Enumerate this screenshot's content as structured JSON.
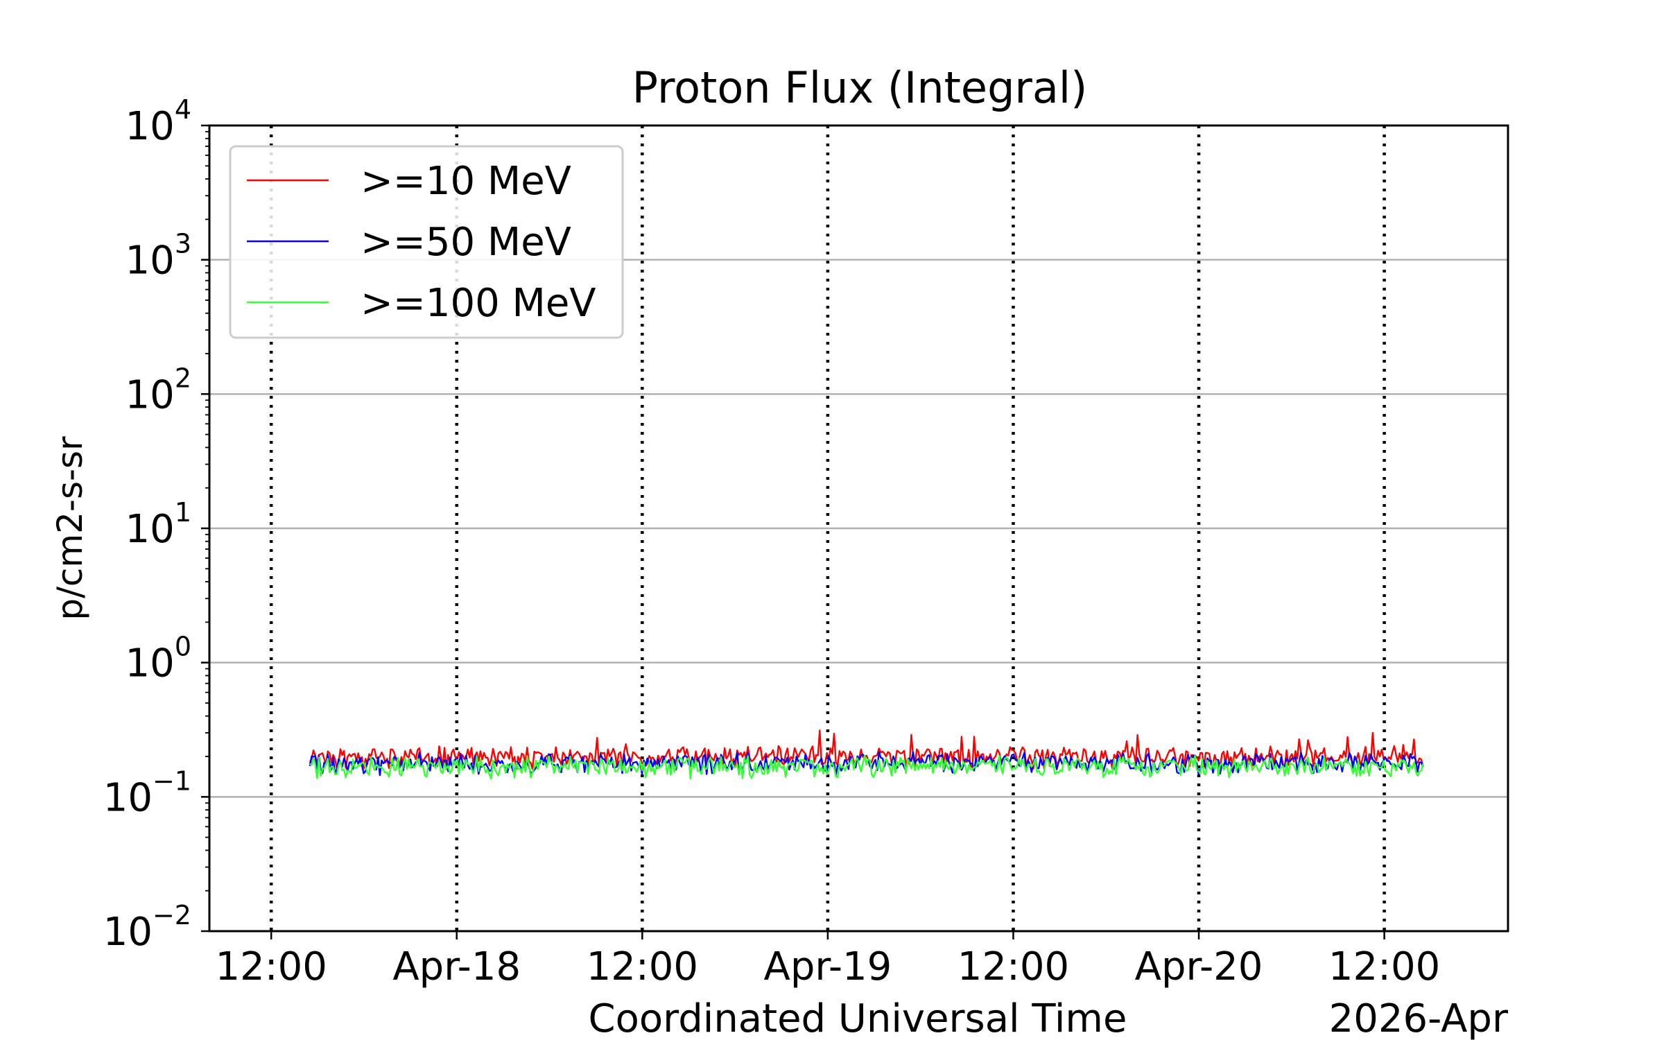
{
  "chart_data": {
    "type": "line",
    "title": "Proton Flux (Integral)",
    "xlabel": "Coordinated Universal Time",
    "ylabel": "p/cm2-s-sr",
    "yscale": "log",
    "ylim": [
      0.01,
      10000
    ],
    "y_ticks": [
      {
        "base": "10",
        "exp": "4"
      },
      {
        "base": "10",
        "exp": "3"
      },
      {
        "base": "10",
        "exp": "2"
      },
      {
        "base": "10",
        "exp": "1"
      },
      {
        "base": "10",
        "exp": "0"
      },
      {
        "base": "10",
        "exp": "−1"
      },
      {
        "base": "10",
        "exp": "−2"
      }
    ],
    "xlim": [
      "2026-04-17T08:00",
      "2026-04-20T20:00"
    ],
    "x_ticks": [
      {
        "time": "2026-04-17T12:00",
        "label": "12:00"
      },
      {
        "time": "2026-04-18T00:00",
        "label": "Apr-18"
      },
      {
        "time": "2026-04-18T12:00",
        "label": "12:00"
      },
      {
        "time": "2026-04-19T00:00",
        "label": "Apr-19"
      },
      {
        "time": "2026-04-19T12:00",
        "label": "12:00"
      },
      {
        "time": "2026-04-20T00:00",
        "label": "Apr-20"
      },
      {
        "time": "2026-04-20T12:00",
        "label": "12:00"
      }
    ],
    "x_offset_label": "2026-Apr",
    "grid": "horizontal at decades; vertical dotted at ticks",
    "legend_position": "top-left",
    "data_range": [
      "2026-04-17T14:30",
      "2026-04-20T14:30"
    ],
    "series": [
      {
        "name": ">=10 MeV",
        "color": "#ff0000",
        "typical": 0.2,
        "min": 0.16,
        "max": 0.33
      },
      {
        "name": ">=50 MeV",
        "color": "#0000ff",
        "typical": 0.18,
        "min": 0.14,
        "max": 0.25
      },
      {
        "name": ">=100 MeV",
        "color": "#33ff33",
        "typical": 0.17,
        "min": 0.12,
        "max": 0.23
      }
    ]
  }
}
